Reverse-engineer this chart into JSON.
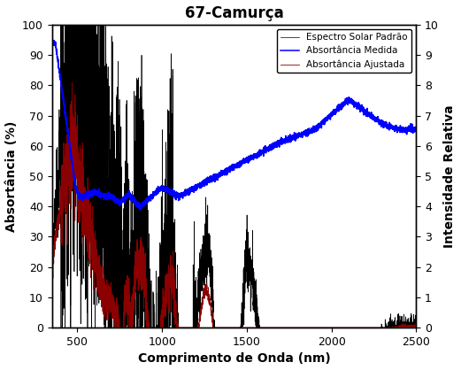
{
  "title": "67-Camurça",
  "xlabel": "Comprimento de Onda (nm)",
  "ylabel_left": "Absortância (%)",
  "ylabel_right": "Intensidade Relativa",
  "xlim": [
    350,
    2500
  ],
  "ylim_left": [
    0,
    100
  ],
  "ylim_right": [
    0,
    10
  ],
  "legend_labels": [
    "Espectro Solar Padrão",
    "Absortância Medida",
    "Absortância Ajustada"
  ],
  "legend_colors": [
    "black",
    "blue",
    "#8b0000"
  ],
  "title_fontsize": 12,
  "label_fontsize": 10,
  "tick_fontsize": 9
}
